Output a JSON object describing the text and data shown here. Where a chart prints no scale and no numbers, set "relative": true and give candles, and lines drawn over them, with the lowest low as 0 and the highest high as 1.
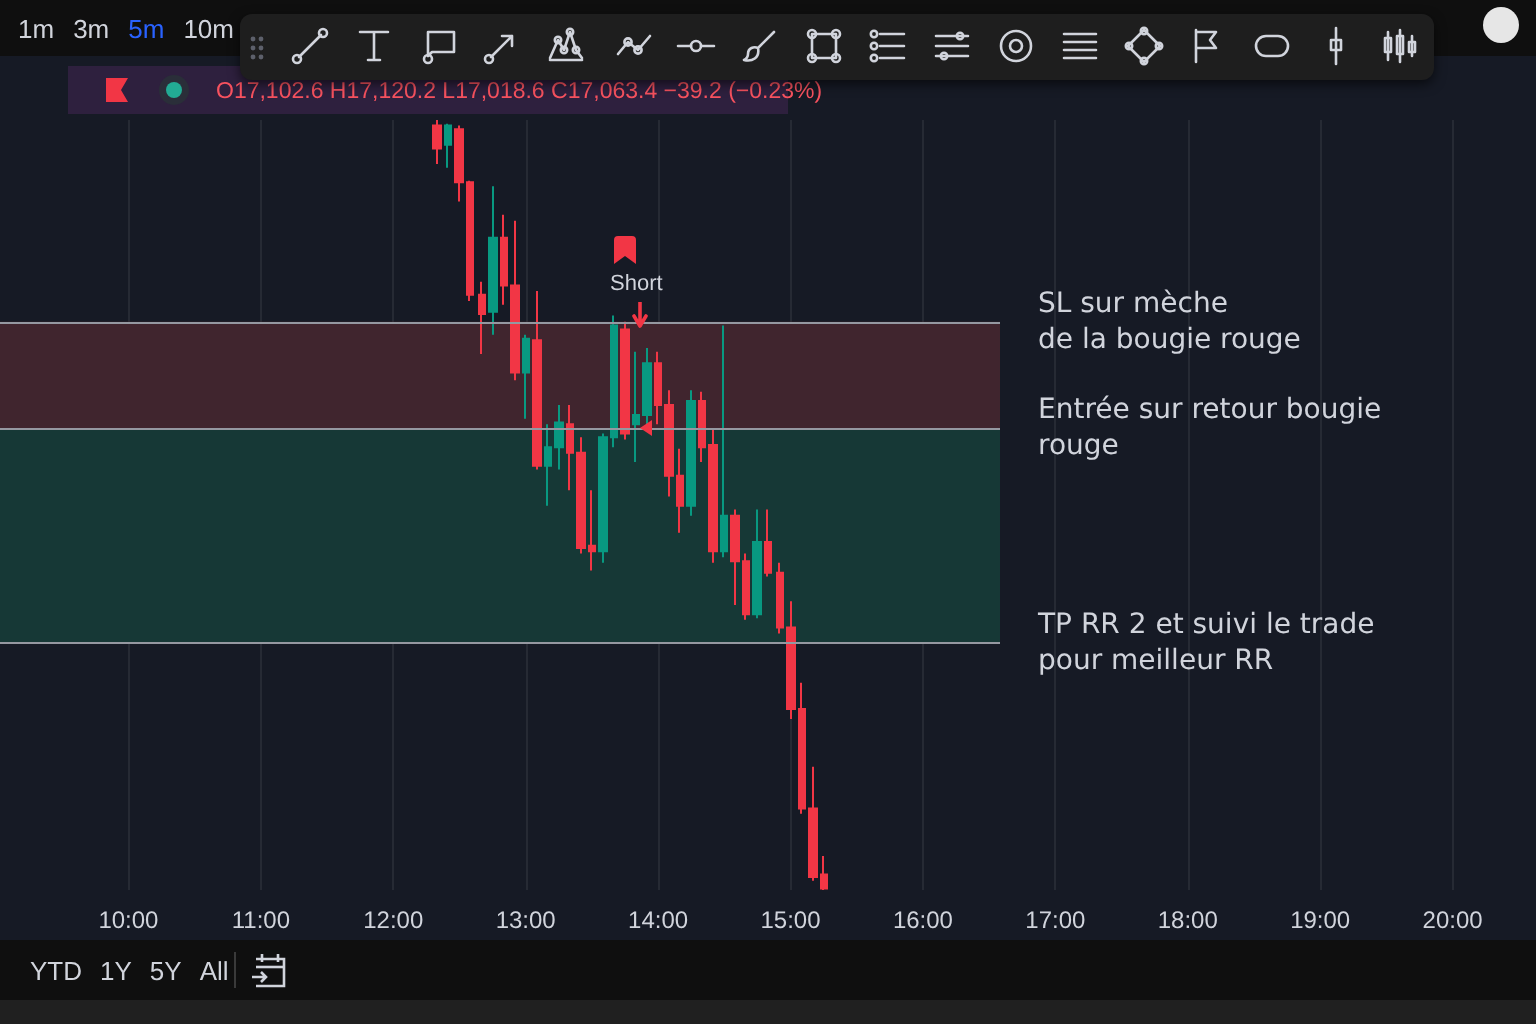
{
  "chart_data": {
    "type": "candlestick",
    "subtitle": "O17,102.6 H17,120.2 L17,018.6 C17,063.4 −39.2 (−0.23%)",
    "relative": true,
    "x": [
      12.333,
      12.417,
      12.5,
      12.583,
      12.667,
      12.75,
      12.833,
      12.917,
      13,
      13.083,
      13.167,
      13.25,
      13.333,
      13.417,
      13.5,
      13.583,
      13.667,
      13.75,
      13.833,
      13.917,
      14,
      14.083,
      14.167,
      14.25,
      14.333,
      14.417,
      14.5,
      14.583,
      14.667,
      14.75,
      14.833,
      14.917,
      15,
      15.083,
      15.167,
      15.25
    ],
    "ohlc": [
      [
        0.993,
        1,
        0.943,
        0.963
      ],
      [
        0.968,
        0.995,
        0.938,
        0.993
      ],
      [
        0.988,
        0.993,
        0.894,
        0.919
      ],
      [
        0.919,
        0.921,
        0.765,
        0.773
      ],
      [
        0.773,
        0.79,
        0.696,
        0.748
      ],
      [
        0.751,
        0.914,
        0.721,
        0.847
      ],
      [
        0.847,
        0.877,
        0.76,
        0.785
      ],
      [
        0.785,
        0.869,
        0.662,
        0.672
      ],
      [
        0.672,
        0.721,
        0.612,
        0.716
      ],
      [
        0.714,
        0.778,
        0.546,
        0.551
      ],
      [
        0.551,
        0.605,
        0.499,
        0.575
      ],
      [
        0.575,
        0.63,
        0.546,
        0.607
      ],
      [
        0.605,
        0.63,
        0.519,
        0.568
      ],
      [
        0.568,
        0.588,
        0.437,
        0.444
      ],
      [
        0.447,
        0.519,
        0.415,
        0.44
      ],
      [
        0.44,
        0.593,
        0.425,
        0.588
      ],
      [
        0.588,
        0.746,
        0.575,
        0.733
      ],
      [
        0.728,
        0.738,
        0.585,
        0.593
      ],
      [
        0.605,
        0.699,
        0.556,
        0.617
      ],
      [
        0.617,
        0.704,
        0.605,
        0.684
      ],
      [
        0.684,
        0.699,
        0.605,
        0.63
      ],
      [
        0.63,
        0.649,
        0.511,
        0.538
      ],
      [
        0.538,
        0.573,
        0.464,
        0.499
      ],
      [
        0.499,
        0.649,
        0.486,
        0.635
      ],
      [
        0.635,
        0.647,
        0.556,
        0.575
      ],
      [
        0.578,
        0.598,
        0.425,
        0.44
      ],
      [
        0.44,
        0.733,
        0.432,
        0.486
      ],
      [
        0.486,
        0.494,
        0.37,
        0.427
      ],
      [
        0.427,
        0.437,
        0.351,
        0.358
      ],
      [
        0.358,
        0.494,
        0.353,
        0.452
      ],
      [
        0.452,
        0.494,
        0.407,
        0.412
      ],
      [
        0.412,
        0.425,
        0.333,
        0.341
      ],
      [
        0.341,
        0.375,
        0.222,
        0.235
      ],
      [
        0.235,
        0.269,
        0.099,
        0.106
      ],
      [
        0.106,
        0.16,
        0.012,
        0.017
      ],
      [
        0.02,
        0.044,
        0,
        0.002
      ]
    ],
    "xlim": [
      9.03,
      20.63
    ],
    "xticks": [
      {
        "value": 10,
        "label": "10:00"
      },
      {
        "value": 11,
        "label": "11:00"
      },
      {
        "value": 12,
        "label": "12:00"
      },
      {
        "value": 13,
        "label": "13:00"
      },
      {
        "value": 14,
        "label": "14:00"
      },
      {
        "value": 15,
        "label": "15:00"
      },
      {
        "value": 16,
        "label": "16:00"
      },
      {
        "value": 17,
        "label": "17:00"
      },
      {
        "value": 18,
        "label": "18:00"
      },
      {
        "value": 19,
        "label": "19:00"
      },
      {
        "value": 20,
        "label": "20:00"
      }
    ],
    "grid": "x",
    "bands": [
      {
        "axis": "y",
        "from": 0.6,
        "to": 0.738,
        "color": "#40252e"
      },
      {
        "axis": "y",
        "from": 0.321,
        "to": 0.6,
        "color": "#163836"
      }
    ],
    "ref_lines": [
      {
        "axis": "y",
        "value": 0.738,
        "label": "SL sur mèche\nde la bougie rouge",
        "color": "#9598a1"
      },
      {
        "axis": "y",
        "value": 0.6,
        "label": "Entrée sur retour bougie\nrouge",
        "color": "#9598a1"
      },
      {
        "axis": "y",
        "value": 0.321,
        "label": "TP RR 2 et suivi le trade\npour meilleur RR",
        "color": "#9598a1"
      }
    ],
    "annotations": [
      "1m",
      "3m",
      "5m",
      "10m",
      "YTD",
      "1Y",
      "5Y",
      "All",
      "Short"
    ]
  }
}
